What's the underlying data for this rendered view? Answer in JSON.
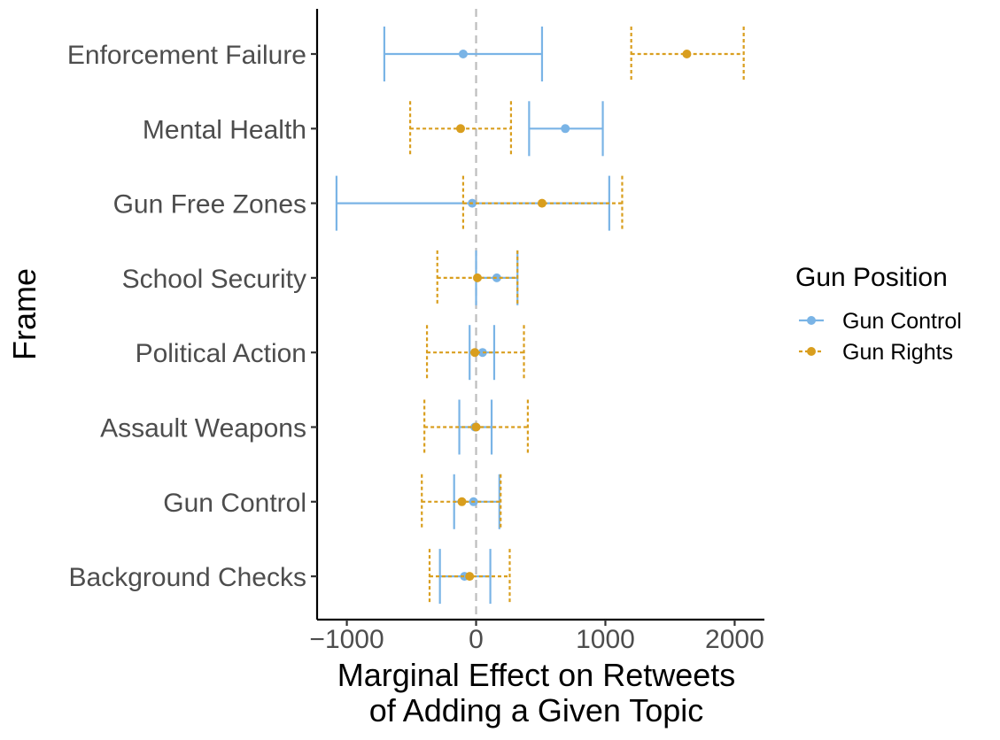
{
  "chart_data": {
    "type": "errorbar",
    "orientation": "horizontal",
    "xlabel_line1": "Marginal Effect on Retweets",
    "xlabel_line2": "of Adding a Given Topic",
    "ylabel": "Frame",
    "xlim": [
      -1230,
      2230
    ],
    "xticks": [
      -1000,
      0,
      1000,
      2000
    ],
    "xtick_labels": [
      "−1000",
      "0",
      "1000",
      "2000"
    ],
    "reference_line_x": 0,
    "grid": false,
    "legend_position": "right",
    "legend_title": "Gun Position",
    "categories": [
      "Enforcement Failure",
      "Mental Health",
      "Gun Free Zones",
      "School Security",
      "Political Action",
      "Assault Weapons",
      "Gun Control",
      "Background Checks"
    ],
    "series": [
      {
        "name": "Gun Control",
        "color": "#7ab4e6",
        "line_style": "solid",
        "points": [
          {
            "estimate": -100,
            "low": -710,
            "high": 510
          },
          {
            "estimate": 690,
            "low": 410,
            "high": 980
          },
          {
            "estimate": -30,
            "low": -1080,
            "high": 1030
          },
          {
            "estimate": 160,
            "low": 0,
            "high": 320
          },
          {
            "estimate": 50,
            "low": -50,
            "high": 140
          },
          {
            "estimate": -10,
            "low": -130,
            "high": 120
          },
          {
            "estimate": -20,
            "low": -170,
            "high": 180
          },
          {
            "estimate": -90,
            "low": -280,
            "high": 110
          }
        ]
      },
      {
        "name": "Gun Rights",
        "color": "#d99e1e",
        "line_style": "dotted",
        "points": [
          {
            "estimate": 1630,
            "low": 1200,
            "high": 2070
          },
          {
            "estimate": -120,
            "low": -510,
            "high": 270
          },
          {
            "estimate": 510,
            "low": -100,
            "high": 1130
          },
          {
            "estimate": 10,
            "low": -300,
            "high": 320
          },
          {
            "estimate": -10,
            "low": -380,
            "high": 370
          },
          {
            "estimate": 0,
            "low": -400,
            "high": 400
          },
          {
            "estimate": -110,
            "low": -420,
            "high": 190
          },
          {
            "estimate": -50,
            "low": -360,
            "high": 260
          }
        ]
      }
    ]
  }
}
